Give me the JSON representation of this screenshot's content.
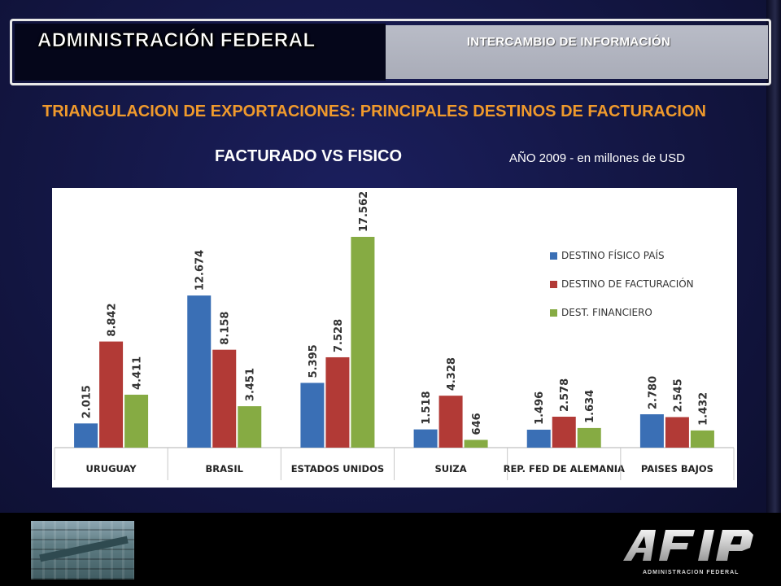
{
  "header": {
    "left_title": "ADMINISTRACIÓN FEDERAL",
    "right_title": "INTERCAMBIO DE INFORMACIÓN"
  },
  "main_title": "TRIANGULACION DE EXPORTACIONES: PRINCIPALES DESTINOS DE FACTURACION",
  "subtitle": "FACTURADO VS FISICO",
  "year_note": "AÑO 2009 - en millones de USD",
  "footer": {
    "logo_text": "ADMINISTRACION FEDERAL"
  },
  "colors": {
    "title_orange": "#f09a2c",
    "series_blue": "#3a6fb5",
    "series_red": "#b23a36",
    "series_green": "#86ab43"
  },
  "chart_data": {
    "type": "bar",
    "categories": [
      "URUGUAY",
      "BRASIL",
      "ESTADOS UNIDOS",
      "SUIZA",
      "REP. FED DE ALEMANIA",
      "PAISES BAJOS"
    ],
    "series": [
      {
        "name": "DESTINO FÍSICO PAÍS",
        "color": "#3a6fb5",
        "values": [
          2015,
          12674,
          5395,
          1518,
          1496,
          2780
        ],
        "labels": [
          "2.015",
          "12.674",
          "5.395",
          "1.518",
          "1.496",
          "2.780"
        ]
      },
      {
        "name": "DESTINO DE FACTURACIÓN",
        "color": "#b23a36",
        "values": [
          8842,
          8158,
          7528,
          4328,
          2578,
          2545
        ],
        "labels": [
          "8.842",
          "8.158",
          "7.528",
          "4.328",
          "2.578",
          "2.545"
        ]
      },
      {
        "name": "DEST. FINANCIERO",
        "color": "#86ab43",
        "values": [
          4411,
          3451,
          17562,
          646,
          1634,
          1432
        ],
        "labels": [
          "4.411",
          "3.451",
          "17.562",
          "646",
          "1.634",
          "1.432"
        ]
      }
    ],
    "ylim": [
      0,
      17562
    ],
    "legend_position": "right",
    "grid": false
  }
}
